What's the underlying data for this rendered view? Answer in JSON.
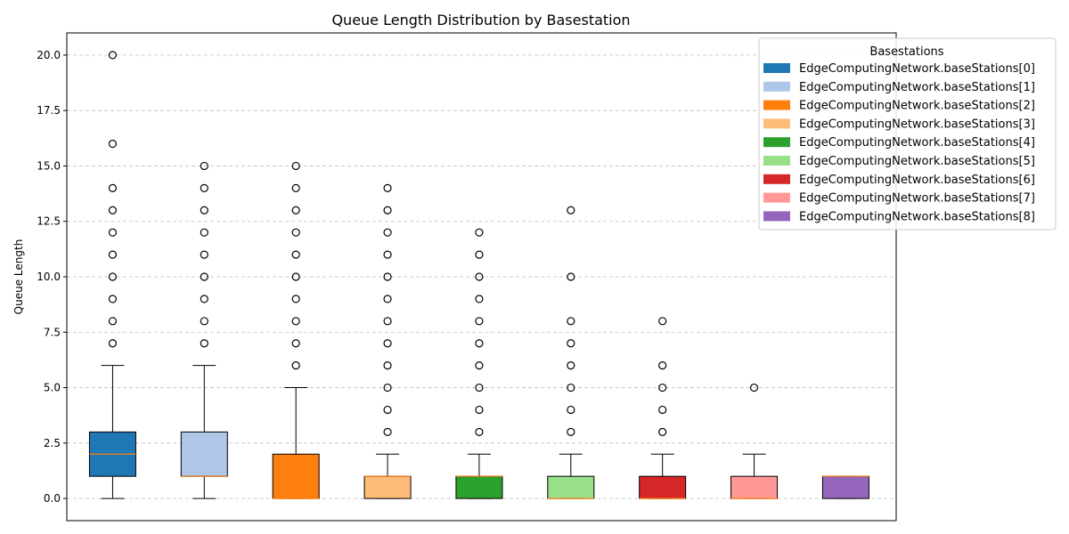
{
  "chart_data": {
    "type": "boxplot",
    "title": "Queue Length Distribution by Basestation",
    "xlabel": "",
    "ylabel": "Queue Length",
    "ylim": [
      -1,
      21
    ],
    "yticks": [
      0.0,
      2.5,
      5.0,
      7.5,
      10.0,
      12.5,
      15.0,
      17.5,
      20.0
    ],
    "ytick_labels": [
      "0.0",
      "2.5",
      "5.0",
      "7.5",
      "10.0",
      "12.5",
      "15.0",
      "17.5",
      "20.0"
    ],
    "grid": "y-dashed",
    "legend_title": "Basestations",
    "legend_position": "top-right",
    "series": [
      {
        "name": "EdgeComputingNetwork.baseStations[0]",
        "color": "#1f77b4",
        "q1": 1,
        "median": 2,
        "q3": 3,
        "whisker_low": 0,
        "whisker_high": 6,
        "outliers": [
          7,
          8,
          9,
          10,
          11,
          12,
          13,
          14,
          16,
          20
        ]
      },
      {
        "name": "EdgeComputingNetwork.baseStations[1]",
        "color": "#aec7e8",
        "q1": 1,
        "median": 1,
        "q3": 3,
        "whisker_low": 0,
        "whisker_high": 6,
        "outliers": [
          7,
          8,
          9,
          10,
          11,
          12,
          13,
          14,
          15
        ]
      },
      {
        "name": "EdgeComputingNetwork.baseStations[2]",
        "color": "#ff7f0e",
        "q1": 0,
        "median": 0,
        "q3": 2,
        "whisker_low": 0,
        "whisker_high": 5,
        "outliers": [
          6,
          7,
          8,
          9,
          10,
          11,
          12,
          13,
          14,
          15
        ]
      },
      {
        "name": "EdgeComputingNetwork.baseStations[3]",
        "color": "#ffbb78",
        "q1": 0,
        "median": 1,
        "q3": 1,
        "whisker_low": 0,
        "whisker_high": 2,
        "outliers": [
          3,
          4,
          5,
          6,
          7,
          8,
          9,
          10,
          11,
          12,
          13,
          14
        ]
      },
      {
        "name": "EdgeComputingNetwork.baseStations[4]",
        "color": "#2ca02c",
        "q1": 0,
        "median": 1,
        "q3": 1,
        "whisker_low": 0,
        "whisker_high": 2,
        "outliers": [
          3,
          4,
          5,
          6,
          7,
          8,
          9,
          10,
          11,
          12
        ]
      },
      {
        "name": "EdgeComputingNetwork.baseStations[5]",
        "color": "#98df8a",
        "q1": 0,
        "median": 0,
        "q3": 1,
        "whisker_low": 0,
        "whisker_high": 2,
        "outliers": [
          3,
          4,
          5,
          6,
          7,
          8,
          10,
          13
        ]
      },
      {
        "name": "EdgeComputingNetwork.baseStations[6]",
        "color": "#d62728",
        "q1": 0,
        "median": 0,
        "q3": 1,
        "whisker_low": 0,
        "whisker_high": 2,
        "outliers": [
          3,
          4,
          5,
          6,
          8
        ]
      },
      {
        "name": "EdgeComputingNetwork.baseStations[7]",
        "color": "#ff9896",
        "q1": 0,
        "median": 0,
        "q3": 1,
        "whisker_low": 0,
        "whisker_high": 2,
        "outliers": [
          5
        ]
      },
      {
        "name": "EdgeComputingNetwork.baseStations[8]",
        "color": "#9467bd",
        "q1": 0,
        "median": 1,
        "q3": 1,
        "whisker_low": 0,
        "whisker_high": 1,
        "outliers": []
      }
    ],
    "median_color": "#ff7f0e"
  }
}
